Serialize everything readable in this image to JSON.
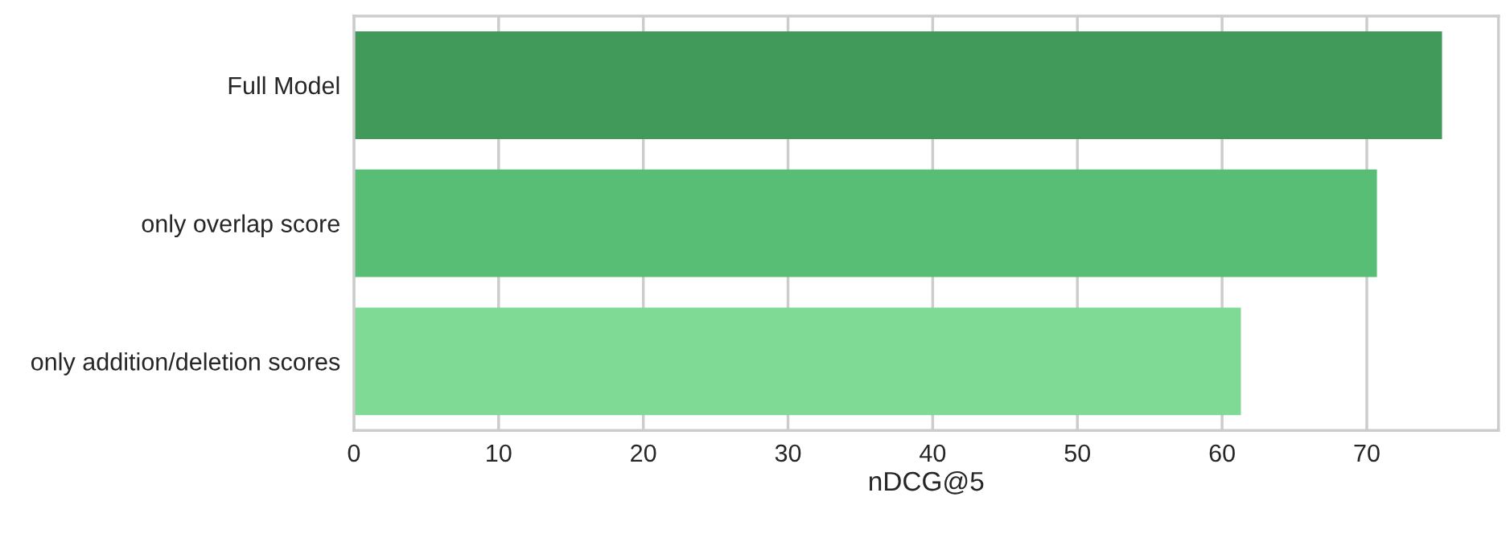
{
  "chart_data": {
    "type": "bar",
    "orientation": "horizontal",
    "categories": [
      "Full Model",
      "only overlap score",
      "only addition/deletion scores"
    ],
    "values": [
      75.2,
      70.7,
      61.3
    ],
    "colors": [
      "#41995a",
      "#58be76",
      "#7fda96"
    ],
    "xlabel": "nDCG@5",
    "xlim": [
      0,
      79.1
    ],
    "xticks": [
      0,
      10,
      20,
      30,
      40,
      50,
      60,
      70
    ],
    "grid": "x"
  }
}
